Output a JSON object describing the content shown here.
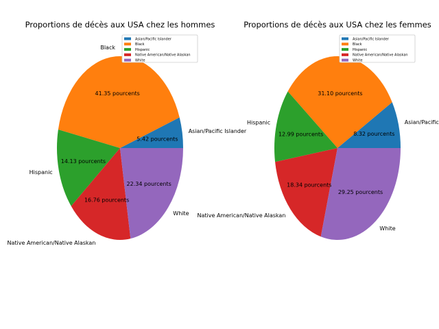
{
  "chart_data": [
    {
      "type": "pie",
      "title": "Proportions de décès aux USA chez les hommes",
      "categories": [
        "Asian/Pacific Islander",
        "Black",
        "Hispanic",
        "Native American/Native Alaskan",
        "White"
      ],
      "values": [
        5.42,
        41.35,
        14.13,
        16.76,
        22.34
      ],
      "value_labels": [
        "5.42 pourcents",
        "41.35 pourcents",
        "14.13 pourcents",
        "16.76 pourcents",
        "22.34 pourcents"
      ],
      "colors": [
        "#1f77b4",
        "#ff7f0e",
        "#2ca02c",
        "#d62728",
        "#9467bd"
      ],
      "legend": {
        "placement": "top-right",
        "entries": [
          "Asian/Pacific Islander",
          "Black",
          "Hispanic",
          "Native American/Native Alaskan",
          "White"
        ]
      }
    },
    {
      "type": "pie",
      "title": "Proportions de décès aux USA chez les femmes",
      "categories": [
        "Asian/Pacific Islander",
        "Black",
        "Hispanic",
        "Native American/Native Alaskan",
        "White"
      ],
      "values": [
        8.32,
        31.1,
        12.99,
        18.34,
        29.25
      ],
      "value_labels": [
        "8.32 pourcents",
        "31.10 pourcents",
        "12.99 pourcents",
        "18.34 pourcents",
        "29.25 pourcents"
      ],
      "colors": [
        "#1f77b4",
        "#ff7f0e",
        "#2ca02c",
        "#d62728",
        "#9467bd"
      ],
      "legend": {
        "placement": "top-right",
        "entries": [
          "Asian/Pacific Islander",
          "Black",
          "Hispanic",
          "Native American/Native Alaskan",
          "White"
        ]
      }
    }
  ]
}
